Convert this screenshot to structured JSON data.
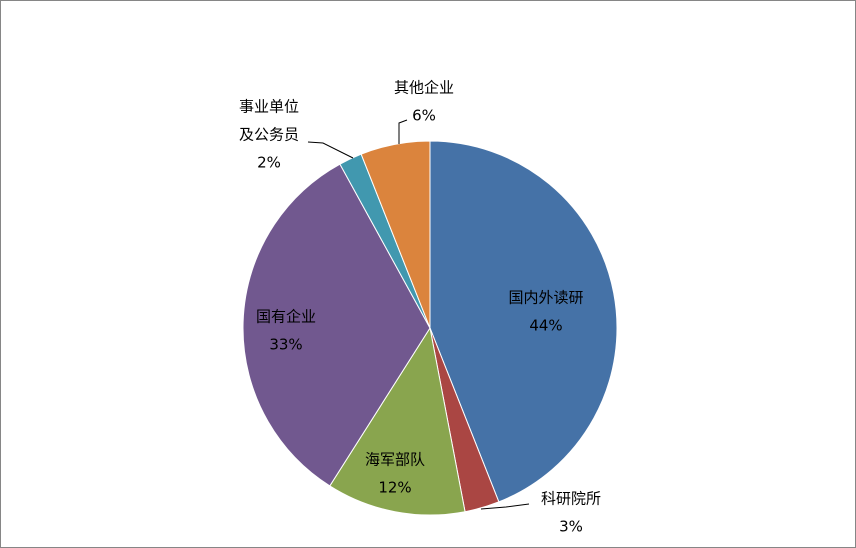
{
  "chart_data": {
    "type": "pie",
    "title": "",
    "start_angle": "top",
    "direction": "clockwise",
    "legend": "none",
    "slices": [
      {
        "label": [
          "国内外读研"
        ],
        "value": 44,
        "value_label": "44%",
        "color": "#4572A7"
      },
      {
        "label": [
          "科研院所"
        ],
        "value": 3,
        "value_label": "3%",
        "color": "#AA4643"
      },
      {
        "label": [
          "海军部队"
        ],
        "value": 12,
        "value_label": "12%",
        "color": "#89A54E"
      },
      {
        "label": [
          "国有企业"
        ],
        "value": 33,
        "value_label": "33%",
        "color": "#71588F"
      },
      {
        "label": [
          "事业单位",
          "及公务员"
        ],
        "value": 2,
        "value_label": "2%",
        "color": "#4198AF"
      },
      {
        "label": [
          "其他企业"
        ],
        "value": 6,
        "value_label": "6%",
        "color": "#DB843D"
      }
    ]
  }
}
